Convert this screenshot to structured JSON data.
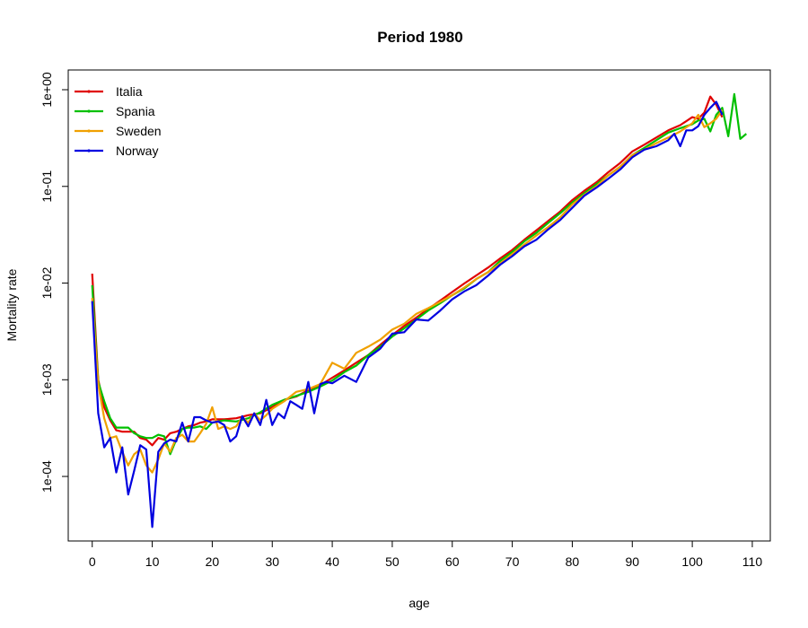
{
  "chart_data": {
    "type": "line",
    "title": "Period 1980",
    "xlabel": "age",
    "ylabel": "Mortality rate",
    "xlim": [
      -4,
      113
    ],
    "ylim": [
      2.15e-05,
      1.6
    ],
    "y_scale": "log",
    "x_ticks": [
      0,
      10,
      20,
      30,
      40,
      50,
      60,
      70,
      80,
      90,
      100,
      110
    ],
    "x_tick_labels": [
      "0",
      "10",
      "20",
      "30",
      "40",
      "50",
      "60",
      "70",
      "80",
      "90",
      "100",
      "110"
    ],
    "y_ticks": [
      0.0001,
      0.001,
      0.01,
      0.1,
      1
    ],
    "y_tick_labels": [
      "1e-04",
      "1e-03",
      "1e-02",
      "1e-01",
      "1e+00"
    ],
    "grid": false,
    "legend_position": "top-left",
    "series": [
      {
        "name": "Italia",
        "color": "#e00000",
        "x": [
          0,
          1,
          2,
          3,
          4,
          5,
          6,
          7,
          8,
          9,
          10,
          11,
          12,
          13,
          14,
          15,
          16,
          17,
          18,
          19,
          20,
          22,
          24,
          26,
          28,
          30,
          32,
          34,
          36,
          38,
          40,
          42,
          44,
          46,
          48,
          50,
          52,
          54,
          56,
          58,
          60,
          62,
          64,
          66,
          68,
          70,
          72,
          74,
          76,
          78,
          80,
          82,
          84,
          86,
          88,
          90,
          92,
          94,
          96,
          98,
          100,
          101,
          102,
          103,
          104,
          105
        ],
        "y": [
          0.0125,
          0.001,
          0.00052,
          0.00038,
          0.0003,
          0.00029,
          0.00029,
          0.00029,
          0.00025,
          0.00024,
          0.00021,
          0.00025,
          0.00024,
          0.00028,
          0.00029,
          0.00031,
          0.00033,
          0.00034,
          0.00036,
          0.00037,
          0.00039,
          0.00039,
          0.0004,
          0.00043,
          0.00045,
          0.00052,
          0.00062,
          0.00067,
          0.00078,
          0.00088,
          0.00105,
          0.00125,
          0.0015,
          0.0018,
          0.0023,
          0.0029,
          0.0036,
          0.0044,
          0.0054,
          0.0066,
          0.0081,
          0.0099,
          0.012,
          0.0145,
          0.018,
          0.022,
          0.028,
          0.035,
          0.044,
          0.055,
          0.072,
          0.09,
          0.11,
          0.14,
          0.175,
          0.23,
          0.27,
          0.32,
          0.38,
          0.43,
          0.52,
          0.5,
          0.58,
          0.85,
          0.7,
          0.52
        ]
      },
      {
        "name": "Spania",
        "color": "#00c000",
        "x": [
          0,
          1,
          2,
          3,
          4,
          5,
          6,
          7,
          8,
          9,
          10,
          11,
          12,
          13,
          14,
          15,
          16,
          17,
          18,
          19,
          20,
          22,
          24,
          26,
          28,
          30,
          32,
          34,
          36,
          38,
          40,
          42,
          44,
          46,
          48,
          50,
          52,
          54,
          56,
          58,
          60,
          62,
          64,
          66,
          68,
          70,
          72,
          74,
          76,
          78,
          80,
          82,
          84,
          86,
          88,
          90,
          92,
          94,
          96,
          98,
          100,
          101,
          102,
          103,
          104,
          105,
          106,
          107,
          108,
          109
        ],
        "y": [
          0.0095,
          0.00095,
          0.0006,
          0.0004,
          0.00032,
          0.00032,
          0.00032,
          0.00028,
          0.00026,
          0.00025,
          0.00025,
          0.00027,
          0.00026,
          0.00017,
          0.00024,
          0.00031,
          0.00032,
          0.00032,
          0.00033,
          0.00031,
          0.00036,
          0.00038,
          0.00037,
          0.0004,
          0.00046,
          0.00055,
          0.00062,
          0.00068,
          0.00075,
          0.00085,
          0.00098,
          0.0012,
          0.0014,
          0.0018,
          0.0022,
          0.0028,
          0.0034,
          0.0042,
          0.0052,
          0.0062,
          0.0075,
          0.0088,
          0.011,
          0.013,
          0.017,
          0.021,
          0.027,
          0.033,
          0.042,
          0.053,
          0.068,
          0.085,
          0.105,
          0.13,
          0.16,
          0.21,
          0.25,
          0.3,
          0.36,
          0.4,
          0.44,
          0.48,
          0.5,
          0.37,
          0.55,
          0.65,
          0.33,
          0.9,
          0.31,
          0.35
        ]
      },
      {
        "name": "Sweden",
        "color": "#f0a000",
        "x": [
          0,
          1,
          2,
          3,
          4,
          5,
          6,
          7,
          8,
          9,
          10,
          11,
          12,
          13,
          14,
          15,
          16,
          17,
          18,
          19,
          20,
          21,
          22,
          23,
          24,
          25,
          26,
          27,
          28,
          29,
          30,
          32,
          34,
          36,
          38,
          40,
          42,
          44,
          46,
          48,
          50,
          52,
          54,
          56,
          58,
          60,
          62,
          64,
          66,
          68,
          70,
          72,
          74,
          76,
          78,
          80,
          82,
          84,
          86,
          88,
          90,
          92,
          94,
          96,
          98,
          100,
          101,
          102,
          103,
          104,
          105
        ],
        "y": [
          0.007,
          0.0009,
          0.0004,
          0.00025,
          0.00026,
          0.00018,
          0.00013,
          0.00017,
          0.00019,
          0.00013,
          0.00011,
          0.00015,
          0.00022,
          0.00018,
          0.00025,
          0.00027,
          0.00023,
          0.00023,
          0.00028,
          0.00035,
          0.00052,
          0.00031,
          0.00033,
          0.00031,
          0.00033,
          0.00041,
          0.00036,
          0.00045,
          0.00038,
          0.00043,
          0.0005,
          0.0006,
          0.00075,
          0.0008,
          0.0009,
          0.0015,
          0.0013,
          0.0019,
          0.0022,
          0.0026,
          0.0033,
          0.0038,
          0.0048,
          0.0055,
          0.0064,
          0.0075,
          0.009,
          0.011,
          0.013,
          0.016,
          0.02,
          0.025,
          0.031,
          0.038,
          0.048,
          0.065,
          0.082,
          0.1,
          0.13,
          0.16,
          0.21,
          0.24,
          0.28,
          0.32,
          0.37,
          0.45,
          0.55,
          0.41,
          0.45,
          0.5,
          0.62
        ]
      },
      {
        "name": "Norway",
        "color": "#0000e0",
        "x": [
          0,
          1,
          2,
          3,
          4,
          5,
          6,
          7,
          8,
          9,
          10,
          11,
          12,
          13,
          14,
          15,
          16,
          17,
          18,
          19,
          20,
          21,
          22,
          23,
          24,
          25,
          26,
          27,
          28,
          29,
          30,
          31,
          32,
          33,
          34,
          35,
          36,
          37,
          38,
          39,
          40,
          42,
          44,
          46,
          48,
          50,
          52,
          54,
          56,
          58,
          60,
          62,
          64,
          66,
          68,
          70,
          72,
          74,
          76,
          78,
          80,
          82,
          84,
          86,
          88,
          90,
          92,
          94,
          96,
          97,
          98,
          99,
          100,
          101,
          102,
          103,
          104,
          105
        ],
        "y": [
          0.0065,
          0.00045,
          0.0002,
          0.00025,
          0.00011,
          0.0002,
          6.5e-05,
          0.000115,
          0.00021,
          0.00019,
          3e-05,
          0.00018,
          0.00022,
          0.00024,
          0.00023,
          0.00036,
          0.00023,
          0.00041,
          0.00041,
          0.00038,
          0.00036,
          0.00037,
          0.00034,
          0.00023,
          0.00026,
          0.00042,
          0.00033,
          0.00045,
          0.00034,
          0.00062,
          0.00034,
          0.00045,
          0.0004,
          0.0006,
          0.00055,
          0.0005,
          0.00095,
          0.00045,
          0.0009,
          0.00095,
          0.00092,
          0.0011,
          0.00095,
          0.0017,
          0.0021,
          0.003,
          0.0031,
          0.0042,
          0.0041,
          0.0052,
          0.0068,
          0.0082,
          0.0095,
          0.012,
          0.0155,
          0.019,
          0.024,
          0.028,
          0.036,
          0.045,
          0.06,
          0.08,
          0.097,
          0.12,
          0.15,
          0.2,
          0.24,
          0.26,
          0.3,
          0.35,
          0.26,
          0.38,
          0.38,
          0.42,
          0.55,
          0.65,
          0.75,
          0.55
        ]
      }
    ]
  }
}
